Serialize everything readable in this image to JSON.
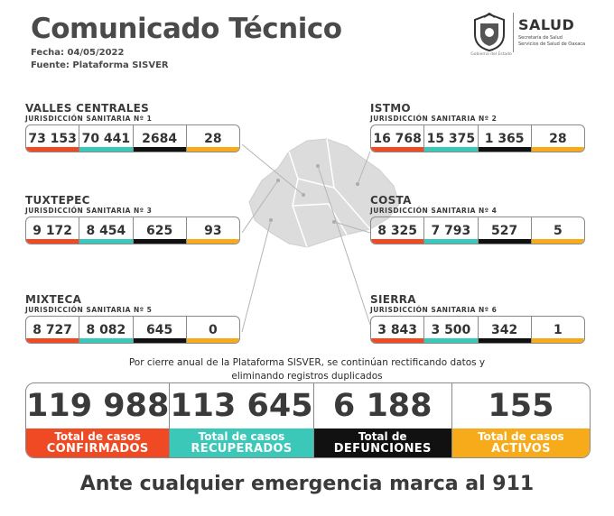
{
  "header": {
    "title": "Comunicado Técnico",
    "fecha": "Fecha: 04/05/2022",
    "fuente": "Fuente: Plataforma SISVER"
  },
  "logo": {
    "seal_caption": "Gobierno del Estado",
    "salud": "SALUD",
    "line1": "Secretaría de Salud",
    "line2": "Servicios de Salud de Oaxaca"
  },
  "colors": {
    "confirmados": "#f04a24",
    "recuperados": "#3cc8b8",
    "defunciones": "#111111",
    "activos": "#f7ab1b"
  },
  "jurisdicciones": [
    {
      "name": "VALLES CENTRALES",
      "sub": "JURISDICCIÓN SANITARIA Nº 1",
      "values": [
        "73 153",
        "70 441",
        "2684",
        "28"
      ]
    },
    {
      "name": "ISTMO",
      "sub": "JURISDICCIÓN SANITARIA Nº 2",
      "values": [
        "16 768",
        "15 375",
        "1 365",
        "28"
      ]
    },
    {
      "name": "TUXTEPEC",
      "sub": "JURISDICCIÓN SANITARIA Nº 3",
      "values": [
        "9 172",
        "8 454",
        "625",
        "93"
      ]
    },
    {
      "name": "COSTA",
      "sub": "JURISDICCIÓN SANITARIA Nº 4",
      "values": [
        "8 325",
        "7 793",
        "527",
        "5"
      ]
    },
    {
      "name": "MIXTECA",
      "sub": "JURISDICCIÓN SANITARIA Nº 5",
      "values": [
        "8 727",
        "8 082",
        "645",
        "0"
      ]
    },
    {
      "name": "SIERRA",
      "sub": "JURISDICCIÓN SANITARIA Nº 6",
      "values": [
        "3 843",
        "3 500",
        "342",
        "1"
      ]
    }
  ],
  "notice": {
    "line1": "Por cierre anual de la Plataforma SISVER, se continúan rectificando datos y",
    "line2": "eliminando registros duplicados"
  },
  "totals": [
    {
      "value": "119 988",
      "label1": "Total de casos",
      "label2": "CONFIRMADOS"
    },
    {
      "value": "113 645",
      "label1": "Total de casos",
      "label2": "RECUPERADOS"
    },
    {
      "value": "6 188",
      "label1": "Total de",
      "label2": "DEFUNCIONES"
    },
    {
      "value": "155",
      "label1": "Total de casos",
      "label2": "ACTIVOS"
    }
  ],
  "footer": "Ante cualquier emergencia marca al 911"
}
